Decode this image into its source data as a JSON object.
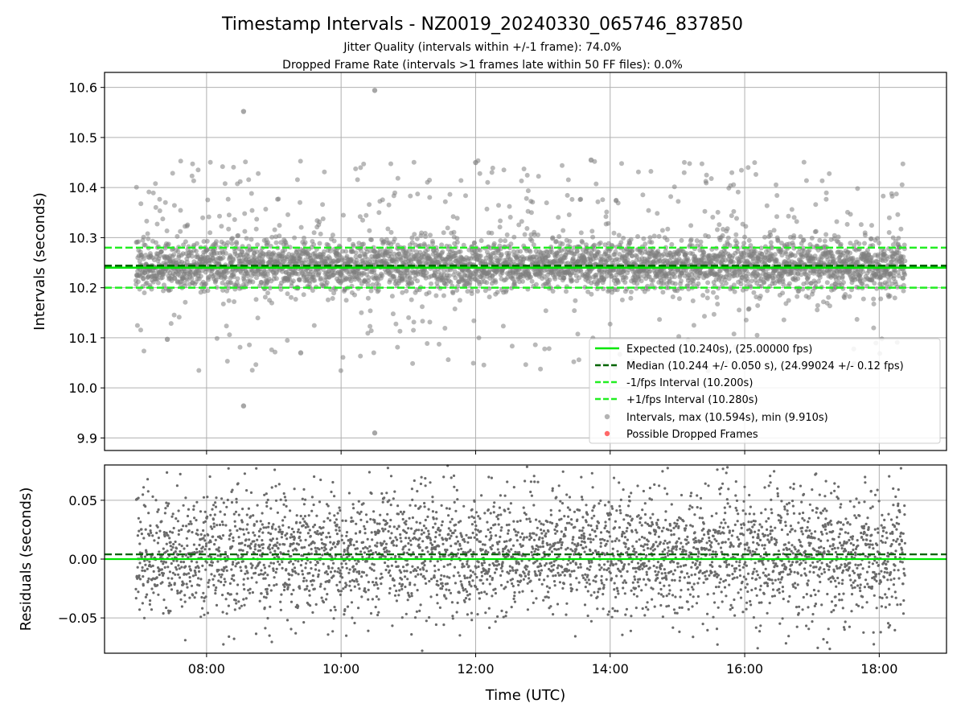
{
  "title": "Timestamp Intervals - NZ0019_20240330_065746_837850",
  "subtitle1": "Jitter Quality (intervals within +/-1 frame): 74.0%",
  "subtitle2": "Dropped Frame Rate (intervals >1 frames late within 50 FF files): 0.0%",
  "colors": {
    "expected": "#00e600",
    "median": "#006400",
    "fps_interval": "#22ee22",
    "points": "#808080",
    "dropped": "#ff4d4d",
    "grid": "#b0b0b0"
  },
  "chart_data": [
    {
      "type": "scatter",
      "ylabel": "Intervals (seconds)",
      "xlabel": "",
      "xlim": [
        "06:29",
        "19:00"
      ],
      "ylim": [
        9.875,
        10.63
      ],
      "grid": true,
      "yticks": [
        "9.9",
        "10.0",
        "10.1",
        "10.2",
        "10.3",
        "10.4",
        "10.5",
        "10.6"
      ],
      "ytick_values": [
        9.9,
        10.0,
        10.1,
        10.2,
        10.3,
        10.4,
        10.5,
        10.6
      ],
      "xticks_values": [
        "08:00",
        "10:00",
        "12:00",
        "14:00",
        "16:00",
        "18:00"
      ],
      "x_range": [
        "06:57",
        "18:23"
      ],
      "n_points": 4020,
      "lines": [
        {
          "name": "Expected (10.240s), (25.00000 fps)",
          "y": 10.24,
          "style": "solid"
        },
        {
          "name": "Median (10.244 +/- 0.050 s), (24.99024 +/- 0.12 fps)",
          "y": 10.244,
          "style": "dashed"
        },
        {
          "name": "-1/fps Interval (10.200s)",
          "y": 10.2,
          "style": "dashed"
        },
        {
          "name": "+1/fps Interval (10.280s)",
          "y": 10.28,
          "style": "dashed"
        }
      ],
      "series": [
        {
          "name": "Intervals, max (10.594s), min (9.910s)",
          "max": 10.594,
          "min": 9.91,
          "median": 10.244,
          "spread": 0.05
        },
        {
          "name": "Possible Dropped Frames",
          "count": 0
        }
      ],
      "outliers": [
        {
          "x": "08:33",
          "y": 10.552
        },
        {
          "x": "10:30",
          "y": 10.594
        },
        {
          "x": "08:33",
          "y": 9.964
        },
        {
          "x": "10:30",
          "y": 9.91
        },
        {
          "x": "09:24",
          "y": 10.07
        },
        {
          "x": "07:25",
          "y": 10.097
        },
        {
          "x": "12:00",
          "y": 10.45
        },
        {
          "x": "13:43",
          "y": 10.455
        }
      ],
      "legend_position": "lower right"
    },
    {
      "type": "scatter",
      "ylabel": "Residuals (seconds)",
      "xlabel": "Time (UTC)",
      "xlim": [
        "06:29",
        "19:00"
      ],
      "ylim": [
        -0.08,
        0.08
      ],
      "grid": true,
      "yticks": [
        "−0.05",
        "0.00",
        "0.05"
      ],
      "ytick_values": [
        -0.05,
        0.0,
        0.05
      ],
      "xticks": [
        "08:00",
        "10:00",
        "12:00",
        "14:00",
        "16:00",
        "18:00"
      ],
      "lines": [
        {
          "y": 0.0,
          "style": "solid"
        },
        {
          "y": 0.004,
          "style": "dashed"
        }
      ]
    }
  ]
}
